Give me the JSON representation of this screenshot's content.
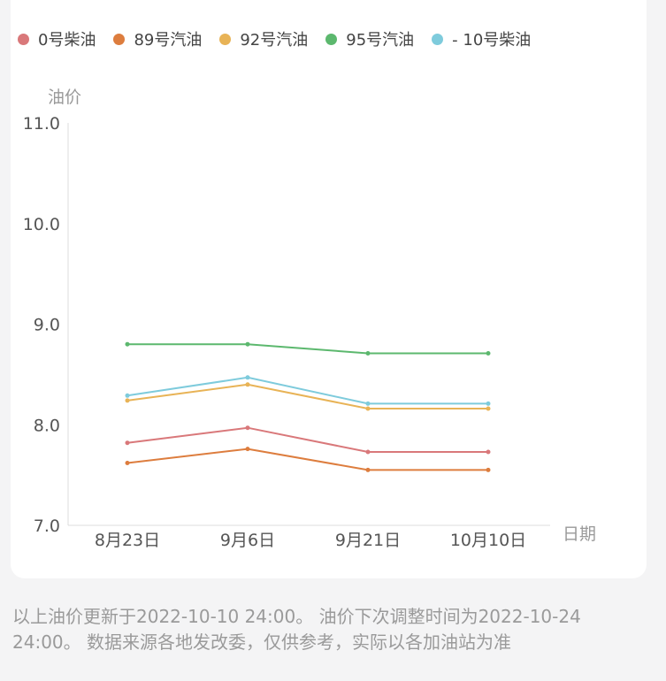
{
  "legend": [
    {
      "label": "0号柴油",
      "color": "#d9787a"
    },
    {
      "label": "89号汽油",
      "color": "#dd7d3e"
    },
    {
      "label": "92号汽油",
      "color": "#e8b356"
    },
    {
      "label": "95号汽油",
      "color": "#5cb86e"
    },
    {
      "label": "- 10号柴油",
      "color": "#7ecbdc"
    }
  ],
  "chart_data": {
    "type": "line",
    "ylabel": "油价",
    "xlabel": "日期",
    "ylim": [
      7.0,
      11.0
    ],
    "yticks": [
      "7.0",
      "8.0",
      "9.0",
      "10.0",
      "11.0"
    ],
    "categories": [
      "8月23日",
      "9月6日",
      "9月21日",
      "10月10日"
    ],
    "grid": false,
    "legend_position": "top",
    "series": [
      {
        "name": "0号柴油",
        "color": "#d9787a",
        "values": [
          7.82,
          7.97,
          7.73,
          7.73
        ]
      },
      {
        "name": "89号汽油",
        "color": "#dd7d3e",
        "values": [
          7.62,
          7.76,
          7.55,
          7.55
        ]
      },
      {
        "name": "92号汽油",
        "color": "#e8b356",
        "values": [
          8.24,
          8.4,
          8.16,
          8.16
        ]
      },
      {
        "name": "95号汽油",
        "color": "#5cb86e",
        "values": [
          8.8,
          8.8,
          8.71,
          8.71
        ]
      },
      {
        "name": "- 10号柴油",
        "color": "#7ecbdc",
        "values": [
          8.29,
          8.47,
          8.21,
          8.21
        ]
      }
    ]
  },
  "footer": {
    "note": "以上油价更新于2022-10-10 24:00。 油价下次调整时间为2022-10-24 24:00。 数据来源各地发改委，仅供参考，实际以各加油站为准"
  }
}
